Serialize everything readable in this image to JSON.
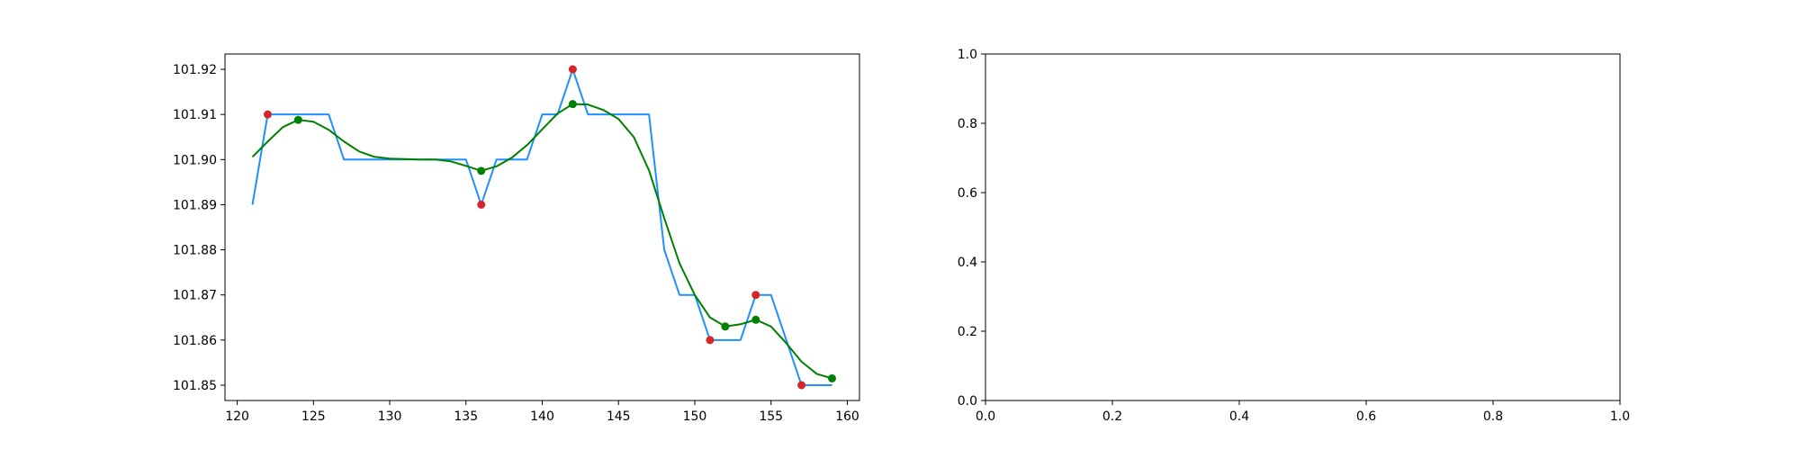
{
  "chart_data": [
    {
      "type": "line",
      "title": "",
      "xlabel": "",
      "ylabel": "",
      "xlim": [
        119.2,
        160.8
      ],
      "ylim": [
        101.8466,
        101.9234
      ],
      "xticks": [
        120,
        125,
        130,
        135,
        140,
        145,
        150,
        155,
        160
      ],
      "xtick_labels": [
        "120",
        "125",
        "130",
        "135",
        "140",
        "145",
        "150",
        "155",
        "160"
      ],
      "yticks": [
        101.85,
        101.86,
        101.87,
        101.88,
        101.89,
        101.9,
        101.91,
        101.92
      ],
      "ytick_labels": [
        "101.85",
        "101.86",
        "101.87",
        "101.88",
        "101.89",
        "101.90",
        "101.91",
        "101.92"
      ],
      "grid": false,
      "series": [
        {
          "kind": "step-line",
          "color": "#1e90ff",
          "x": [
            121,
            122,
            123,
            124,
            125,
            126,
            127,
            128,
            129,
            130,
            131,
            132,
            133,
            134,
            135,
            136,
            137,
            138,
            139,
            140,
            141,
            142,
            143,
            144,
            145,
            146,
            147,
            148,
            149,
            150,
            151,
            152,
            153,
            154,
            155,
            156,
            157,
            158,
            159
          ],
          "y": [
            101.89,
            101.91,
            101.91,
            101.91,
            101.91,
            101.91,
            101.9,
            101.9,
            101.9,
            101.9,
            101.9,
            101.9,
            101.9,
            101.9,
            101.9,
            101.89,
            101.9,
            101.9,
            101.9,
            101.91,
            101.91,
            101.92,
            101.91,
            101.91,
            101.91,
            101.91,
            101.91,
            101.88,
            101.87,
            101.87,
            101.86,
            101.86,
            101.86,
            101.87,
            101.87,
            101.86,
            101.85,
            101.85,
            101.85
          ]
        },
        {
          "kind": "smooth-line",
          "color": "#008000",
          "x": [
            121,
            122,
            123,
            124,
            125,
            126,
            127,
            128,
            129,
            130,
            131,
            132,
            133,
            134,
            135,
            136,
            137,
            138,
            139,
            140,
            141,
            142,
            143,
            144,
            145,
            146,
            147,
            148,
            149,
            150,
            151,
            152,
            153,
            154,
            155,
            156,
            157,
            158,
            159
          ],
          "y": [
            101.9006,
            101.904,
            101.9072,
            101.9088,
            101.9084,
            101.9066,
            101.904,
            101.9018,
            101.9006,
            101.9002,
            101.9001,
            101.9,
            101.9,
            101.8996,
            101.8986,
            101.8975,
            101.8985,
            101.9004,
            101.9032,
            101.9067,
            101.9102,
            101.9123,
            101.9122,
            101.911,
            101.909,
            101.905,
            101.8976,
            101.887,
            101.877,
            101.87,
            101.865,
            101.863,
            101.8635,
            101.8645,
            101.863,
            101.8593,
            101.8552,
            101.8525,
            101.8515
          ]
        },
        {
          "kind": "scatter",
          "color": "#d62728",
          "x": [
            122,
            136,
            142,
            151,
            154,
            157
          ],
          "y": [
            101.91,
            101.89,
            101.92,
            101.86,
            101.87,
            101.85
          ]
        },
        {
          "kind": "scatter",
          "color": "#008000",
          "x": [
            124,
            136,
            142,
            152,
            154,
            159
          ],
          "y": [
            101.9088,
            101.8975,
            101.9123,
            101.863,
            101.8645,
            101.8515
          ]
        }
      ]
    },
    {
      "type": "line",
      "title": "",
      "xlabel": "",
      "ylabel": "",
      "xlim": [
        0,
        1
      ],
      "ylim": [
        0,
        1
      ],
      "xticks": [
        0,
        0.2,
        0.4,
        0.6,
        0.8,
        1.0
      ],
      "xtick_labels": [
        "0.0",
        "0.2",
        "0.4",
        "0.6",
        "0.8",
        "1.0"
      ],
      "yticks": [
        0,
        0.2,
        0.4,
        0.6,
        0.8,
        1.0
      ],
      "ytick_labels": [
        "0.0",
        "0.2",
        "0.4",
        "0.6",
        "0.8",
        "1.0"
      ],
      "grid": false,
      "series": []
    }
  ]
}
